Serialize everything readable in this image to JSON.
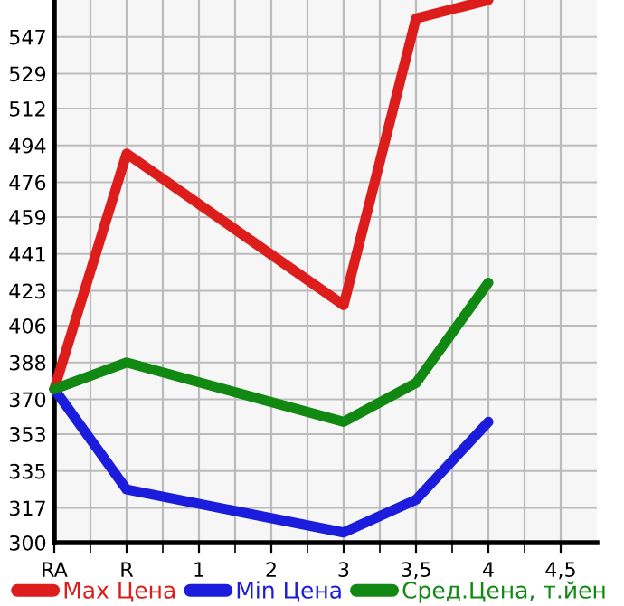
{
  "chart_data": {
    "type": "line",
    "categories": [
      "RA",
      "R",
      "1",
      "2",
      "3",
      "3,5",
      "4",
      "4,5"
    ],
    "series": [
      {
        "name": "Max Цена",
        "color": "#dd1c1c",
        "values": [
          375,
          490,
          null,
          null,
          416,
          556,
          565,
          null
        ]
      },
      {
        "name": "Min Цена",
        "color": "#1c1cdd",
        "values": [
          375,
          326,
          null,
          null,
          305,
          321,
          359,
          null
        ]
      },
      {
        "name": "Сред.Цена, т.йен",
        "color": "#118811",
        "values": [
          375,
          388,
          null,
          null,
          359,
          378,
          427,
          null
        ]
      }
    ],
    "ylim": [
      300,
      565
    ],
    "yticks": [
      300,
      317,
      335,
      353,
      370,
      388,
      406,
      423,
      441,
      459,
      476,
      494,
      512,
      529,
      547
    ],
    "grid": true,
    "legend": "bottom",
    "marker": "none",
    "line_style": "solid"
  }
}
